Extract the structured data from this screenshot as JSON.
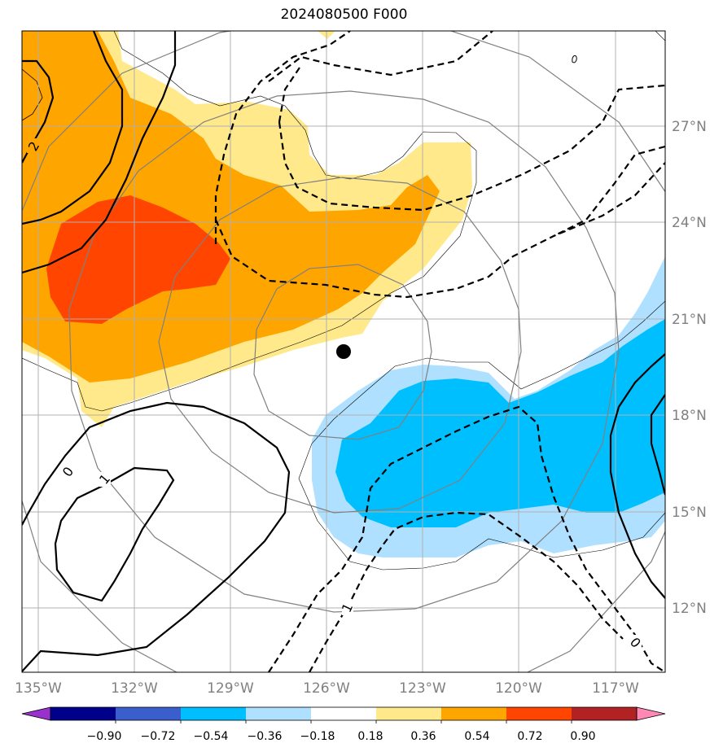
{
  "title": "2024080500 F000",
  "lon_labels": [
    "135°W",
    "132°W",
    "129°W",
    "126°W",
    "123°W",
    "120°W",
    "117°W"
  ],
  "lat_labels": [
    "27°N",
    "24°N",
    "21°N",
    "18°N",
    "15°N",
    "12°N"
  ],
  "contour_labels": [
    "2",
    "0",
    "1",
    "1",
    "0",
    "0"
  ],
  "colorbar": {
    "ticks": [
      "−0.90",
      "−0.72",
      "−0.54",
      "−0.36",
      "−0.18",
      "0.18",
      "0.36",
      "0.54",
      "0.72",
      "0.90"
    ],
    "colors": [
      "#9932cc",
      "#00008b",
      "#3a5fcd",
      "#00bfff",
      "#b0e0ff",
      "#ffffff",
      "#ffe98a",
      "#ffa500",
      "#ff4500",
      "#b22222",
      "#ff88b4"
    ]
  },
  "colors": {
    "pos1": "#ffe98a",
    "pos2": "#ffa500",
    "pos3": "#ff4500",
    "neg1": "#b0e0ff",
    "neg2": "#00bfff",
    "grid": "#b0b0b0",
    "rings": "#808080",
    "label": "#808080"
  },
  "center_marker": "black-dot"
}
